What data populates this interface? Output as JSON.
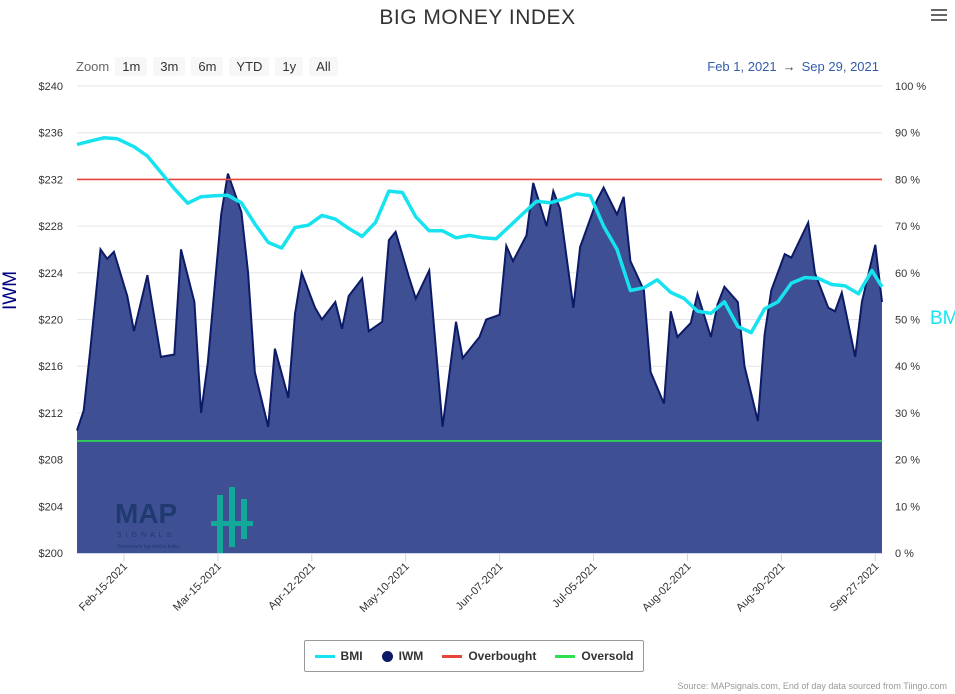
{
  "title": "BIG MONEY INDEX",
  "zoom": {
    "label": "Zoom",
    "buttons": [
      "1m",
      "3m",
      "6m",
      "YTD",
      "1y",
      "All"
    ]
  },
  "date_range": {
    "from": "Feb 1, 2021",
    "arrow": "→",
    "to": "Sep 29, 2021"
  },
  "axes": {
    "left_title": "IWM",
    "right_title": "BMI"
  },
  "legend": [
    {
      "label": "BMI",
      "color": "#17e3f0",
      "shape": "line"
    },
    {
      "label": "IWM",
      "color": "#0d1a66",
      "shape": "dot"
    },
    {
      "label": "Overbought",
      "color": "#e8453c",
      "shape": "line"
    },
    {
      "label": "Oversold",
      "color": "#2ee04f",
      "shape": "line"
    }
  ],
  "credit": "Source: MAPsignals.com, End of day data sourced from Tiingo.com",
  "logo": {
    "text": "MAP",
    "subtext": "SIGNALS",
    "tagline": "Tomorrow's top stocks today"
  },
  "chart_data": {
    "type": "area",
    "x_range": [
      "2021-02-01",
      "2021-09-29"
    ],
    "x_ticks": [
      "Feb-15-2021",
      "Mar-15-2021",
      "Apr-12-2021",
      "May-10-2021",
      "Jun-07-2021",
      "Jul-05-2021",
      "Aug-02-2021",
      "Aug-30-2021",
      "Sep-27-2021"
    ],
    "y_left": {
      "title": "IWM",
      "min": 200,
      "max": 240,
      "ticks": [
        "$200",
        "$204",
        "$208",
        "$212",
        "$216",
        "$220",
        "$224",
        "$228",
        "$232",
        "$236",
        "$240"
      ]
    },
    "y_right": {
      "title": "BMI",
      "min": 0,
      "max": 100,
      "ticks": [
        "0 %",
        "10 %",
        "20 %",
        "30 %",
        "40 %",
        "50 %",
        "60 %",
        "70 %",
        "80 %",
        "90 %",
        "100 %"
      ]
    },
    "overbought": 80,
    "oversold": 24,
    "series": [
      {
        "name": "IWM",
        "axis": "left",
        "x": [
          "2021-02-01",
          "2021-02-03",
          "2021-02-05",
          "2021-02-08",
          "2021-02-10",
          "2021-02-12",
          "2021-02-16",
          "2021-02-18",
          "2021-02-22",
          "2021-02-24",
          "2021-02-26",
          "2021-03-02",
          "2021-03-04",
          "2021-03-08",
          "2021-03-10",
          "2021-03-12",
          "2021-03-16",
          "2021-03-18",
          "2021-03-22",
          "2021-03-24",
          "2021-03-26",
          "2021-03-30",
          "2021-04-01",
          "2021-04-05",
          "2021-04-07",
          "2021-04-09",
          "2021-04-13",
          "2021-04-15",
          "2021-04-19",
          "2021-04-21",
          "2021-04-23",
          "2021-04-27",
          "2021-04-29",
          "2021-05-03",
          "2021-05-05",
          "2021-05-07",
          "2021-05-11",
          "2021-05-13",
          "2021-05-17",
          "2021-05-19",
          "2021-05-21",
          "2021-05-25",
          "2021-05-27",
          "2021-06-01",
          "2021-06-03",
          "2021-06-07",
          "2021-06-09",
          "2021-06-11",
          "2021-06-15",
          "2021-06-17",
          "2021-06-21",
          "2021-06-23",
          "2021-06-25",
          "2021-06-29",
          "2021-07-01",
          "2021-07-06",
          "2021-07-08",
          "2021-07-12",
          "2021-07-14",
          "2021-07-16",
          "2021-07-20",
          "2021-07-22",
          "2021-07-26",
          "2021-07-28",
          "2021-07-30",
          "2021-08-03",
          "2021-08-05",
          "2021-08-09",
          "2021-08-11",
          "2021-08-13",
          "2021-08-17",
          "2021-08-19",
          "2021-08-23",
          "2021-08-25",
          "2021-08-27",
          "2021-08-31",
          "2021-09-02",
          "2021-09-07",
          "2021-09-09",
          "2021-09-13",
          "2021-09-15",
          "2021-09-17",
          "2021-09-21",
          "2021-09-23",
          "2021-09-27",
          "2021-09-29"
        ],
        "values": [
          210.5,
          212.2,
          217.5,
          226.0,
          225.2,
          225.8,
          222.0,
          219.0,
          223.8,
          220.3,
          216.8,
          217.0,
          226.0,
          221.5,
          212.0,
          216.3,
          229.0,
          232.5,
          229.2,
          224.0,
          215.5,
          210.8,
          217.5,
          213.3,
          220.5,
          224.0,
          221.0,
          220.0,
          221.5,
          219.2,
          222.0,
          223.5,
          219.0,
          219.8,
          226.8,
          227.5,
          223.6,
          221.8,
          224.2,
          217.5,
          210.8,
          219.8,
          216.7,
          218.5,
          220.0,
          220.4,
          226.3,
          225.0,
          227.2,
          231.7,
          228.0,
          231.0,
          229.5,
          221.0,
          226.2,
          230.2,
          231.3,
          229.0,
          230.5,
          225.0,
          222.5,
          215.5,
          212.8,
          220.7,
          218.5,
          219.7,
          222.2,
          218.5,
          221.3,
          222.8,
          221.5,
          216.0,
          211.3,
          218.7,
          222.5,
          225.6,
          225.3,
          228.3,
          224.0,
          221.0,
          220.7,
          222.3,
          216.8,
          221.5,
          226.4,
          221.5
        ]
      },
      {
        "name": "BMI",
        "axis": "right",
        "x": [
          "2021-02-01",
          "2021-02-05",
          "2021-02-09",
          "2021-02-13",
          "2021-02-18",
          "2021-02-22",
          "2021-02-26",
          "2021-03-02",
          "2021-03-06",
          "2021-03-10",
          "2021-03-14",
          "2021-03-18",
          "2021-03-22",
          "2021-03-26",
          "2021-03-30",
          "2021-04-03",
          "2021-04-07",
          "2021-04-11",
          "2021-04-15",
          "2021-04-19",
          "2021-04-23",
          "2021-04-27",
          "2021-05-01",
          "2021-05-05",
          "2021-05-09",
          "2021-05-13",
          "2021-05-17",
          "2021-05-21",
          "2021-05-25",
          "2021-05-29",
          "2021-06-02",
          "2021-06-06",
          "2021-06-10",
          "2021-06-14",
          "2021-06-18",
          "2021-06-22",
          "2021-06-26",
          "2021-06-30",
          "2021-07-04",
          "2021-07-08",
          "2021-07-12",
          "2021-07-16",
          "2021-07-20",
          "2021-07-24",
          "2021-07-28",
          "2021-08-01",
          "2021-08-05",
          "2021-08-09",
          "2021-08-13",
          "2021-08-17",
          "2021-08-21",
          "2021-08-25",
          "2021-08-29",
          "2021-09-02",
          "2021-09-06",
          "2021-09-10",
          "2021-09-14",
          "2021-09-18",
          "2021-09-22",
          "2021-09-26",
          "2021-09-29"
        ],
        "values": [
          87.5,
          88.2,
          88.9,
          88.7,
          87.0,
          85.0,
          81.5,
          78.0,
          74.9,
          76.3,
          76.5,
          76.6,
          75.0,
          70.5,
          66.5,
          65.3,
          69.7,
          70.2,
          72.3,
          71.5,
          69.5,
          67.8,
          70.8,
          77.5,
          77.2,
          72.0,
          69.0,
          69.0,
          67.5,
          68.0,
          67.5,
          67.3,
          70.0,
          72.7,
          75.3,
          75.0,
          75.8,
          76.9,
          76.5,
          70.0,
          65.0,
          56.2,
          56.8,
          58.5,
          55.8,
          54.5,
          51.8,
          51.3,
          53.8,
          48.5,
          47.2,
          52.3,
          53.8,
          57.8,
          59.0,
          58.8,
          57.5,
          57.2,
          55.5,
          60.5,
          57.0
        ]
      }
    ]
  }
}
